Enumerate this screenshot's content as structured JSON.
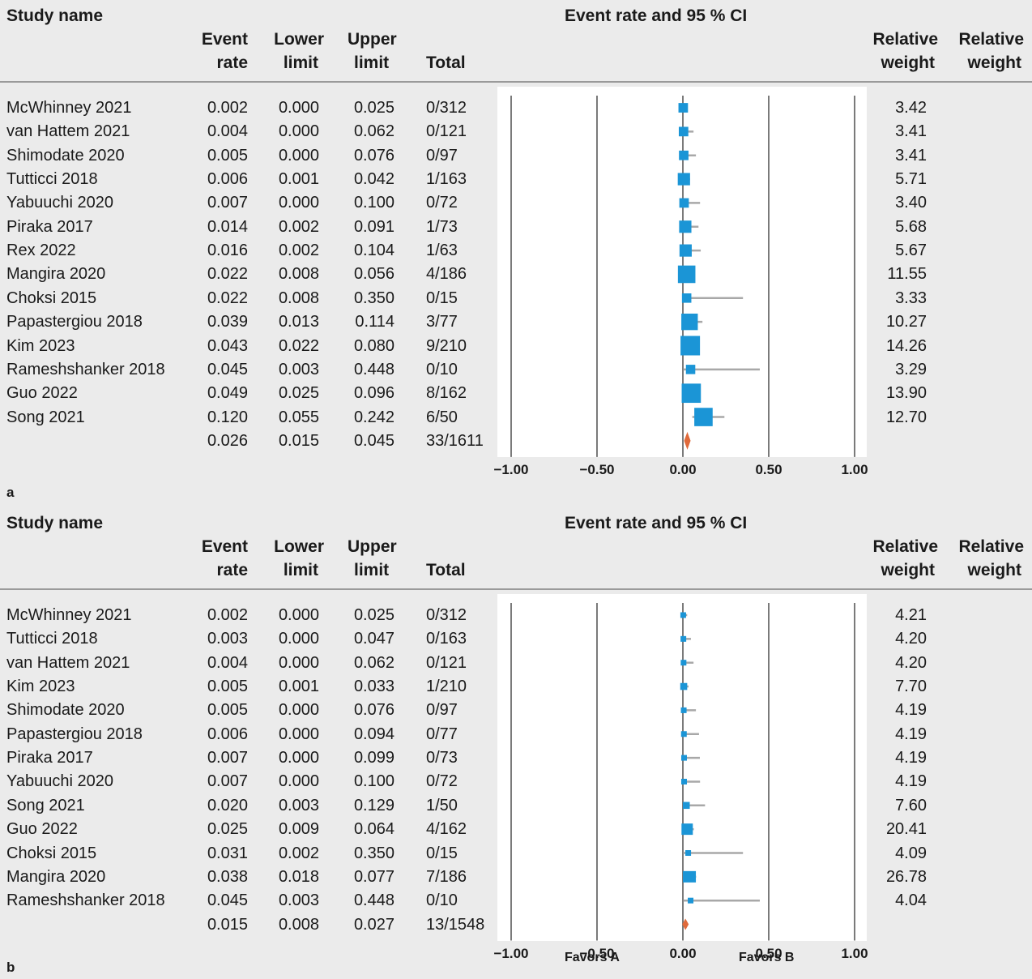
{
  "panels": [
    {
      "panel_label": "a",
      "header": {
        "study_name": "Study name",
        "event_rate": [
          "Event",
          "rate"
        ],
        "lower_limit": [
          "Lower",
          "limit"
        ],
        "upper_limit": [
          "Upper",
          "limit"
        ],
        "total": "Total",
        "plot_title": "Event rate and 95 % CI",
        "relative_weight_1": [
          "Relative",
          "weight"
        ],
        "relative_weight_2": [
          "Relative",
          "weight"
        ]
      },
      "rows": [
        {
          "study": "McWhinney 2021",
          "rate": "0.002",
          "lower": "0.000",
          "upper": "0.025",
          "total": "0/312",
          "weight": "3.42"
        },
        {
          "study": "van Hattem 2021",
          "rate": "0.004",
          "lower": "0.000",
          "upper": "0.062",
          "total": "0/121",
          "weight": "3.41"
        },
        {
          "study": "Shimodate 2020",
          "rate": "0.005",
          "lower": "0.000",
          "upper": "0.076",
          "total": "0/97",
          "weight": "3.41"
        },
        {
          "study": "Tutticci 2018",
          "rate": "0.006",
          "lower": "0.001",
          "upper": "0.042",
          "total": "1/163",
          "weight": "5.71"
        },
        {
          "study": "Yabuuchi 2020",
          "rate": "0.007",
          "lower": "0.000",
          "upper": "0.100",
          "total": "0/72",
          "weight": "3.40"
        },
        {
          "study": "Piraka 2017",
          "rate": "0.014",
          "lower": "0.002",
          "upper": "0.091",
          "total": "1/73",
          "weight": "5.68"
        },
        {
          "study": "Rex 2022",
          "rate": "0.016",
          "lower": "0.002",
          "upper": "0.104",
          "total": "1/63",
          "weight": "5.67"
        },
        {
          "study": "Mangira 2020",
          "rate": "0.022",
          "lower": "0.008",
          "upper": "0.056",
          "total": "4/186",
          "weight": "11.55"
        },
        {
          "study": "Choksi 2015",
          "rate": "0.022",
          "lower": "0.008",
          "upper": "0.350",
          "total": "0/15",
          "weight": "3.33"
        },
        {
          "study": "Papastergiou 2018",
          "rate": "0.039",
          "lower": "0.013",
          "upper": "0.114",
          "total": "3/77",
          "weight": "10.27"
        },
        {
          "study": "Kim 2023",
          "rate": "0.043",
          "lower": "0.022",
          "upper": "0.080",
          "total": "9/210",
          "weight": "14.26"
        },
        {
          "study": "Rameshshanker 2018",
          "rate": "0.045",
          "lower": "0.003",
          "upper": "0.448",
          "total": "0/10",
          "weight": "3.29"
        },
        {
          "study": "Guo 2022",
          "rate": "0.049",
          "lower": "0.025",
          "upper": "0.096",
          "total": "8/162",
          "weight": "13.90"
        },
        {
          "study": "Song 2021",
          "rate": "0.120",
          "lower": "0.055",
          "upper": "0.242",
          "total": "6/50",
          "weight": "12.70"
        }
      ],
      "summary": {
        "rate": "0.026",
        "lower": "0.015",
        "upper": "0.045",
        "total": "33/1611"
      },
      "x_ticks": [
        "−1.00",
        "−0.50",
        "0.00",
        "0.50",
        "1.00"
      ],
      "favors": [
        "",
        ""
      ]
    },
    {
      "panel_label": "b",
      "header": {
        "study_name": "Study name",
        "event_rate": [
          "Event",
          "rate"
        ],
        "lower_limit": [
          "Lower",
          "limit"
        ],
        "upper_limit": [
          "Upper",
          "limit"
        ],
        "total": "Total",
        "plot_title": "Event rate and 95 % CI",
        "relative_weight_1": [
          "Relative",
          "weight"
        ],
        "relative_weight_2": [
          "Relative",
          "weight"
        ]
      },
      "rows": [
        {
          "study": "McWhinney 2021",
          "rate": "0.002",
          "lower": "0.000",
          "upper": "0.025",
          "total": "0/312",
          "weight": "4.21"
        },
        {
          "study": "Tutticci 2018",
          "rate": "0.003",
          "lower": "0.000",
          "upper": "0.047",
          "total": "0/163",
          "weight": "4.20"
        },
        {
          "study": "van Hattem 2021",
          "rate": "0.004",
          "lower": "0.000",
          "upper": "0.062",
          "total": "0/121",
          "weight": "4.20"
        },
        {
          "study": "Kim 2023",
          "rate": "0.005",
          "lower": "0.001",
          "upper": "0.033",
          "total": "1/210",
          "weight": "7.70"
        },
        {
          "study": "Shimodate 2020",
          "rate": "0.005",
          "lower": "0.000",
          "upper": "0.076",
          "total": "0/97",
          "weight": "4.19"
        },
        {
          "study": "Papastergiou 2018",
          "rate": "0.006",
          "lower": "0.000",
          "upper": "0.094",
          "total": "0/77",
          "weight": "4.19"
        },
        {
          "study": "Piraka 2017",
          "rate": "0.007",
          "lower": "0.000",
          "upper": "0.099",
          "total": "0/73",
          "weight": "4.19"
        },
        {
          "study": "Yabuuchi 2020",
          "rate": "0.007",
          "lower": "0.000",
          "upper": "0.100",
          "total": "0/72",
          "weight": "4.19"
        },
        {
          "study": "Song 2021",
          "rate": "0.020",
          "lower": "0.003",
          "upper": "0.129",
          "total": "1/50",
          "weight": "7.60"
        },
        {
          "study": "Guo 2022",
          "rate": "0.025",
          "lower": "0.009",
          "upper": "0.064",
          "total": "4/162",
          "weight": "20.41"
        },
        {
          "study": "Choksi 2015",
          "rate": "0.031",
          "lower": "0.002",
          "upper": "0.350",
          "total": "0/15",
          "weight": "4.09"
        },
        {
          "study": "Mangira 2020",
          "rate": "0.038",
          "lower": "0.018",
          "upper": "0.077",
          "total": "7/186",
          "weight": "26.78"
        },
        {
          "study": "Rameshshanker 2018",
          "rate": "0.045",
          "lower": "0.003",
          "upper": "0.448",
          "total": "0/10",
          "weight": "4.04"
        }
      ],
      "summary": {
        "rate": "0.015",
        "lower": "0.008",
        "upper": "0.027",
        "total": "13/1548"
      },
      "x_ticks": [
        "−1.00",
        "−0.50",
        "0.00",
        "0.50",
        "1.00"
      ],
      "favors": [
        "Favors A",
        "Favors B"
      ]
    }
  ],
  "colors": {
    "box": "#1b95d6",
    "diamond": "#e06a3b",
    "ci_line": "#a8a8a8",
    "grid_line": "#7a7a7a"
  },
  "chart_data": [
    {
      "type": "forest",
      "title": "Event rate and 95 % CI",
      "xlim": [
        -1.0,
        1.0
      ],
      "x_ticks": [
        -1.0,
        -0.5,
        0.0,
        0.5,
        1.0
      ],
      "series": [
        {
          "study": "McWhinney 2021",
          "rate": 0.002,
          "lower": 0.0,
          "upper": 0.025,
          "weight": 3.42
        },
        {
          "study": "van Hattem 2021",
          "rate": 0.004,
          "lower": 0.0,
          "upper": 0.062,
          "weight": 3.41
        },
        {
          "study": "Shimodate 2020",
          "rate": 0.005,
          "lower": 0.0,
          "upper": 0.076,
          "weight": 3.41
        },
        {
          "study": "Tutticci 2018",
          "rate": 0.006,
          "lower": 0.001,
          "upper": 0.042,
          "weight": 5.71
        },
        {
          "study": "Yabuuchi 2020",
          "rate": 0.007,
          "lower": 0.0,
          "upper": 0.1,
          "weight": 3.4
        },
        {
          "study": "Piraka 2017",
          "rate": 0.014,
          "lower": 0.002,
          "upper": 0.091,
          "weight": 5.68
        },
        {
          "study": "Rex 2022",
          "rate": 0.016,
          "lower": 0.002,
          "upper": 0.104,
          "weight": 5.67
        },
        {
          "study": "Mangira 2020",
          "rate": 0.022,
          "lower": 0.008,
          "upper": 0.056,
          "weight": 11.55
        },
        {
          "study": "Choksi 2015",
          "rate": 0.022,
          "lower": 0.008,
          "upper": 0.35,
          "weight": 3.33
        },
        {
          "study": "Papastergiou 2018",
          "rate": 0.039,
          "lower": 0.013,
          "upper": 0.114,
          "weight": 10.27
        },
        {
          "study": "Kim 2023",
          "rate": 0.043,
          "lower": 0.022,
          "upper": 0.08,
          "weight": 14.26
        },
        {
          "study": "Rameshshanker 2018",
          "rate": 0.045,
          "lower": 0.003,
          "upper": 0.448,
          "weight": 3.29
        },
        {
          "study": "Guo 2022",
          "rate": 0.049,
          "lower": 0.025,
          "upper": 0.096,
          "weight": 13.9
        },
        {
          "study": "Song 2021",
          "rate": 0.12,
          "lower": 0.055,
          "upper": 0.242,
          "weight": 12.7
        }
      ],
      "summary": {
        "rate": 0.026,
        "lower": 0.015,
        "upper": 0.045
      }
    },
    {
      "type": "forest",
      "title": "Event rate and 95 % CI",
      "xlim": [
        -1.0,
        1.0
      ],
      "x_ticks": [
        -1.0,
        -0.5,
        0.0,
        0.5,
        1.0
      ],
      "series": [
        {
          "study": "McWhinney 2021",
          "rate": 0.002,
          "lower": 0.0,
          "upper": 0.025,
          "weight": 4.21
        },
        {
          "study": "Tutticci 2018",
          "rate": 0.003,
          "lower": 0.0,
          "upper": 0.047,
          "weight": 4.2
        },
        {
          "study": "van Hattem 2021",
          "rate": 0.004,
          "lower": 0.0,
          "upper": 0.062,
          "weight": 4.2
        },
        {
          "study": "Kim 2023",
          "rate": 0.005,
          "lower": 0.001,
          "upper": 0.033,
          "weight": 7.7
        },
        {
          "study": "Shimodate 2020",
          "rate": 0.005,
          "lower": 0.0,
          "upper": 0.076,
          "weight": 4.19
        },
        {
          "study": "Papastergiou 2018",
          "rate": 0.006,
          "lower": 0.0,
          "upper": 0.094,
          "weight": 4.19
        },
        {
          "study": "Piraka 2017",
          "rate": 0.007,
          "lower": 0.0,
          "upper": 0.099,
          "weight": 4.19
        },
        {
          "study": "Yabuuchi 2020",
          "rate": 0.007,
          "lower": 0.0,
          "upper": 0.1,
          "weight": 4.19
        },
        {
          "study": "Song 2021",
          "rate": 0.02,
          "lower": 0.003,
          "upper": 0.129,
          "weight": 7.6
        },
        {
          "study": "Guo 2022",
          "rate": 0.025,
          "lower": 0.009,
          "upper": 0.064,
          "weight": 20.41
        },
        {
          "study": "Choksi 2015",
          "rate": 0.031,
          "lower": 0.002,
          "upper": 0.35,
          "weight": 4.09
        },
        {
          "study": "Mangira 2020",
          "rate": 0.038,
          "lower": 0.018,
          "upper": 0.077,
          "weight": 26.78
        },
        {
          "study": "Rameshshanker 2018",
          "rate": 0.045,
          "lower": 0.003,
          "upper": 0.448,
          "weight": 4.04
        }
      ],
      "summary": {
        "rate": 0.015,
        "lower": 0.008,
        "upper": 0.027
      }
    }
  ]
}
